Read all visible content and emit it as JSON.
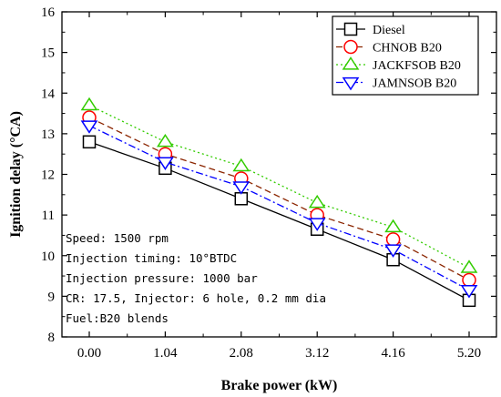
{
  "chart_data": {
    "type": "line",
    "xlabel": "Brake power (kW)",
    "ylabel": "Ignition delay (°CA)",
    "x": [
      0.0,
      1.04,
      2.08,
      3.12,
      4.16,
      5.2
    ],
    "x_tick_labels": [
      "0.00",
      "1.04",
      "2.08",
      "3.12",
      "4.16",
      "5.20"
    ],
    "ylim": [
      8,
      16
    ],
    "y_ticks": [
      8,
      9,
      10,
      11,
      12,
      13,
      14,
      15,
      16
    ],
    "legend_position": "top-right",
    "series": [
      {
        "name": "Diesel",
        "values": [
          12.8,
          12.15,
          11.4,
          10.65,
          9.9,
          8.9
        ],
        "color": "#000000",
        "marker": "square",
        "line": "solid"
      },
      {
        "name": "CHNOB B20",
        "values": [
          13.4,
          12.5,
          11.9,
          11.0,
          10.4,
          9.4
        ],
        "color": "#ff0000",
        "marker": "circle",
        "line": "dashed",
        "line_color": "#8b2500"
      },
      {
        "name": "JACKFSOB B20",
        "values": [
          13.7,
          12.8,
          12.2,
          11.3,
          10.7,
          9.7
        ],
        "color": "#33cc00",
        "marker": "triangle-up",
        "line": "dotted"
      },
      {
        "name": "JAMNSOB B20",
        "values": [
          13.2,
          12.3,
          11.7,
          10.8,
          10.15,
          9.15
        ],
        "color": "#0000ff",
        "marker": "triangle-down",
        "line": "dashdot"
      }
    ],
    "annotations": [
      "Speed: 1500 rpm",
      "Injection timing: 10°BTDC",
      "Injection pressure: 1000 bar",
      "CR: 17.5, Injector: 6 hole, 0.2 mm dia",
      "Fuel:B20 blends"
    ]
  }
}
